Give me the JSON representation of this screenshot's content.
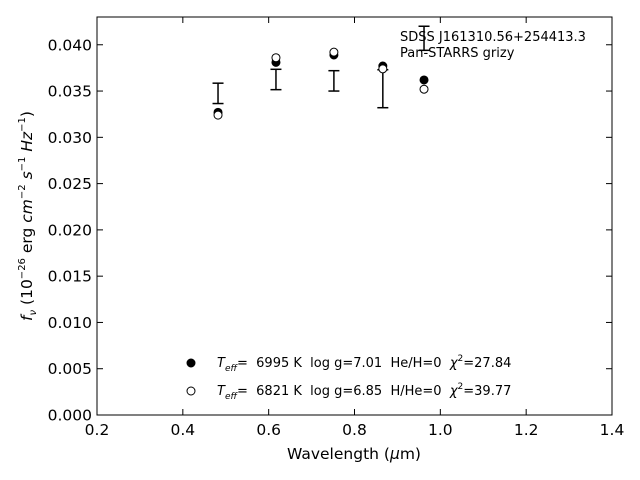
{
  "chart_data": {
    "type": "scatter",
    "title": "",
    "annotations": [
      "SDSS J161310.56+254413.3",
      "Pan-STARRS grizy"
    ],
    "xlabel": {
      "main": "Wavelength (",
      "math": "μ",
      "tail": "m)"
    },
    "ylabel": {
      "f": "f",
      "fsub": "ν",
      "open": " (10",
      "exp1": "−26",
      "unit": " erg ",
      "cm": "cm",
      "exp2": "−2",
      "s": "s",
      "exp3": "−1",
      "hz": "Hz",
      "exp4": "−1",
      "close": ")"
    },
    "xlim": [
      0.2,
      1.4
    ],
    "ylim": [
      0.0,
      0.043
    ],
    "xticks": [
      "0.2",
      "0.4",
      "0.6",
      "0.8",
      "1.0",
      "1.2",
      "1.4"
    ],
    "yticks": [
      "0.000",
      "0.005",
      "0.010",
      "0.015",
      "0.020",
      "0.025",
      "0.030",
      "0.035",
      "0.040"
    ],
    "observed": {
      "x": [
        0.482,
        0.617,
        0.752,
        0.866,
        0.962
      ],
      "y": [
        0.03475,
        0.03625,
        0.0361,
        0.03525,
        0.0407
      ],
      "yerr": [
        0.0011,
        0.0011,
        0.0011,
        0.00205,
        0.0013
      ]
    },
    "series": [
      {
        "name": "",
        "marker": "filled",
        "x": [
          0.482,
          0.617,
          0.752,
          0.866,
          0.962
        ],
        "y": [
          0.0327,
          0.0381,
          0.0389,
          0.0377,
          0.0362
        ],
        "legend": {
          "teff": "T",
          "teffsub": "eff",
          "eq": "=  6995 K  log g=7.01  He/H=0  ",
          "chi": "χ",
          "chiexp": "2",
          "chival": "=27.84"
        }
      },
      {
        "name": "",
        "marker": "open",
        "x": [
          0.482,
          0.617,
          0.752,
          0.866,
          0.962
        ],
        "y": [
          0.0324,
          0.0386,
          0.0392,
          0.0374,
          0.0352
        ],
        "legend": {
          "teff": "T",
          "teffsub": "eff",
          "eq": "=  6821 K  log g=6.85  H/He=0  ",
          "chi": "χ",
          "chiexp": "2",
          "chival": "=39.77"
        }
      }
    ],
    "colors": {
      "marker": "#000000",
      "axis": "#000000",
      "background": "#ffffff"
    }
  }
}
